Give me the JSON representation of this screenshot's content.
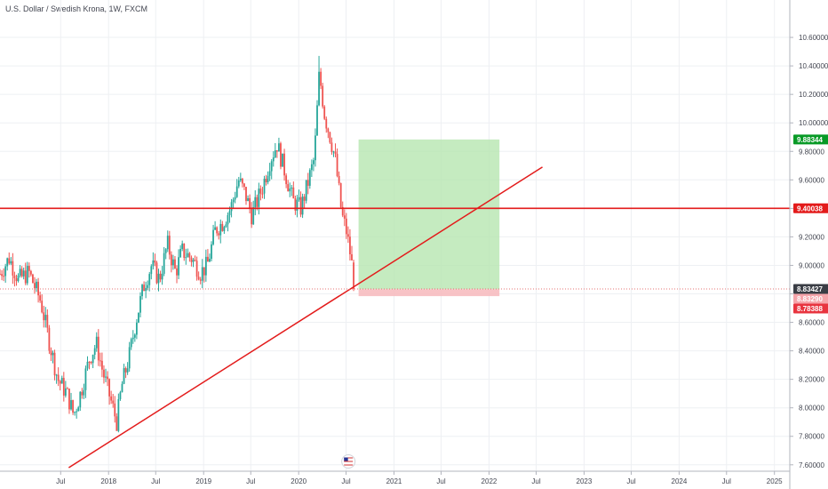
{
  "chart_data": {
    "type": "candlestick",
    "title": "U.S. Dollar / Swedish Krona, 1W, FXCM",
    "y_axis": {
      "ticks": [
        "10.60000",
        "10.40000",
        "10.20000",
        "10.00000",
        "9.80000",
        "9.60000",
        "9.40000",
        "9.20000",
        "9.00000",
        "8.80000",
        "8.60000",
        "8.40000",
        "8.20000",
        "8.00000",
        "7.80000",
        "7.60000"
      ],
      "range": [
        7.58,
        10.85
      ],
      "position": "right"
    },
    "x_axis": {
      "ticks": [
        "Jul",
        "2018",
        "Jul",
        "2019",
        "Jul",
        "2020",
        "Jul",
        "2021",
        "Jul",
        "2022",
        "Jul",
        "2023",
        "Jul",
        "2024",
        "Jul",
        "2025"
      ],
      "range": [
        "2016-11-10",
        "2025-03-01"
      ]
    },
    "grid": true,
    "price_path": [
      [
        "2016-11-10",
        8.94
      ],
      [
        "2016-12-15",
        9.05
      ],
      [
        "2017-01-20",
        8.9
      ],
      [
        "2017-03-01",
        8.95
      ],
      [
        "2017-04-15",
        8.75
      ],
      [
        "2017-05-20",
        8.45
      ],
      [
        "2017-06-20",
        8.2
      ],
      [
        "2017-07-25",
        8.1
      ],
      [
        "2017-08-20",
        7.95
      ],
      [
        "2017-09-15",
        8.1
      ],
      [
        "2017-10-20",
        8.35
      ],
      [
        "2017-11-15",
        8.45
      ],
      [
        "2017-12-10",
        8.25
      ],
      [
        "2018-01-10",
        8.05
      ],
      [
        "2018-02-01",
        7.9
      ],
      [
        "2018-02-20",
        8.15
      ],
      [
        "2018-03-20",
        8.35
      ],
      [
        "2018-04-15",
        8.6
      ],
      [
        "2018-05-15",
        8.85
      ],
      [
        "2018-06-15",
        9.0
      ],
      [
        "2018-07-15",
        8.9
      ],
      [
        "2018-08-15",
        9.15
      ],
      [
        "2018-09-15",
        8.95
      ],
      [
        "2018-10-10",
        9.1
      ],
      [
        "2018-11-15",
        9.05
      ],
      [
        "2018-12-20",
        8.95
      ],
      [
        "2019-01-15",
        9.0
      ],
      [
        "2019-02-15",
        9.25
      ],
      [
        "2019-03-15",
        9.3
      ],
      [
        "2019-04-15",
        9.4
      ],
      [
        "2019-05-15",
        9.6
      ],
      [
        "2019-06-10",
        9.5
      ],
      [
        "2019-07-05",
        9.35
      ],
      [
        "2019-08-15",
        9.55
      ],
      [
        "2019-09-15",
        9.75
      ],
      [
        "2019-10-10",
        9.85
      ],
      [
        "2019-11-10",
        9.65
      ],
      [
        "2019-12-10",
        9.45
      ],
      [
        "2020-01-10",
        9.4
      ],
      [
        "2020-02-01",
        9.55
      ],
      [
        "2020-03-01",
        9.75
      ],
      [
        "2020-03-20",
        10.35
      ],
      [
        "2020-04-10",
        10.05
      ],
      [
        "2020-05-01",
        9.9
      ],
      [
        "2020-05-20",
        9.75
      ],
      [
        "2020-06-15",
        9.35
      ],
      [
        "2020-07-01",
        9.25
      ],
      [
        "2020-07-20",
        9.05
      ],
      [
        "2020-08-04",
        8.83
      ]
    ],
    "price_extremes": {
      "high": 10.47,
      "low": 7.85
    },
    "annotations": {
      "horizontal_line": {
        "price": 9.40038,
        "color": "#e31b1b"
      },
      "trend_line": {
        "from": [
          "2017-08-01",
          7.58
        ],
        "to": [
          "2022-07-25",
          9.69
        ],
        "color": "#e31b1b"
      },
      "long_position": {
        "start": "2020-08-18",
        "end": "2022-02-10",
        "entry": 8.8329,
        "target": 9.88344,
        "stop": 8.78388,
        "profit_color": "#b7e6b0",
        "loss_color": "#f7b8bc"
      },
      "current_price_line": {
        "price": 8.83427
      }
    },
    "price_tags": [
      {
        "label": "9.88344",
        "price": 9.88344,
        "bg": "#089a26",
        "fg": "#ffffff"
      },
      {
        "label": "9.40038",
        "price": 9.40038,
        "bg": "#e31b1b",
        "fg": "#ffffff"
      },
      {
        "label": "8.83427",
        "price": 8.83427,
        "bg": "#3a3d45",
        "fg": "#ffffff"
      },
      {
        "label": "8.83290",
        "price": 8.8329,
        "bg": "#f6a5ab",
        "fg": "#ffffff"
      },
      {
        "label": "8.78388",
        "price": 8.78388,
        "bg": "#e8343f",
        "fg": "#ffffff"
      }
    ],
    "colors": {
      "up": "#26a69a",
      "down": "#ef5350",
      "grid": "#eef0f3",
      "axis_text": "#434651"
    }
  }
}
